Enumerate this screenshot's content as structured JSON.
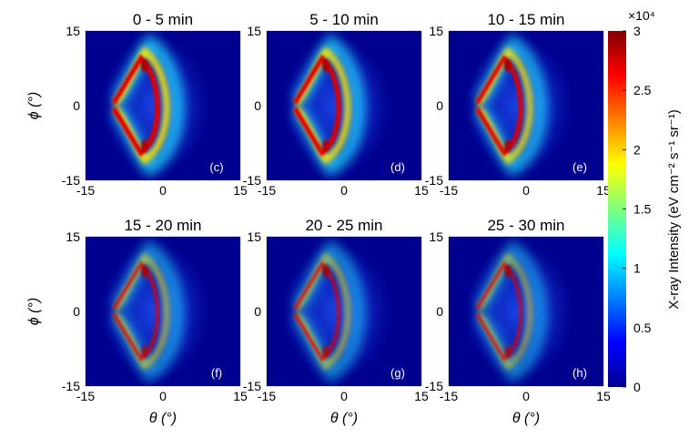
{
  "chart_data": {
    "type": "heatmap",
    "panels": [
      {
        "title": "0 - 5 min",
        "label": "(c)",
        "row": 0,
        "col": 0,
        "intensity": 1.0
      },
      {
        "title": "5 - 10 min",
        "label": "(d)",
        "row": 0,
        "col": 1,
        "intensity": 0.96
      },
      {
        "title": "10 - 15 min",
        "label": "(e)",
        "row": 0,
        "col": 2,
        "intensity": 0.9
      },
      {
        "title": "15 - 20 min",
        "label": "(f)",
        "row": 1,
        "col": 0,
        "intensity": 0.62
      },
      {
        "title": "20 - 25 min",
        "label": "(g)",
        "row": 1,
        "col": 1,
        "intensity": 0.6
      },
      {
        "title": "25 - 30 min",
        "label": "(h)",
        "row": 1,
        "col": 2,
        "intensity": 0.55
      }
    ],
    "xlabel": "θ (°)",
    "ylabel": "ϕ (°)",
    "xlim": [
      -15,
      15
    ],
    "ylim": [
      -15,
      15
    ],
    "xticks": [
      "-15",
      "0",
      "15"
    ],
    "yticks": [
      "15",
      "0",
      "-15"
    ],
    "colorbar": {
      "label": "X-ray Intensity (eV cm⁻² s⁻¹ sr⁻¹)",
      "multiplier": "×10⁴",
      "range": [
        0,
        3
      ],
      "ticks": [
        "0",
        "0.5",
        "1",
        "1.5",
        "2",
        "2.5",
        "3"
      ],
      "colormap": "jet"
    }
  }
}
